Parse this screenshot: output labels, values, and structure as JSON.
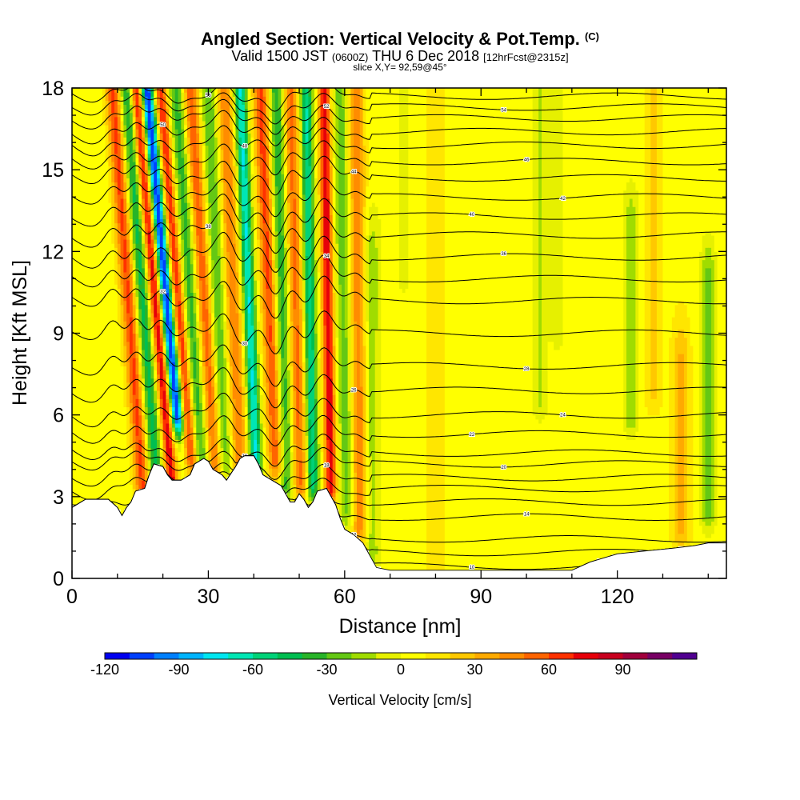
{
  "title": {
    "main": "Angled Section: Vertical Velocity & Pot.Temp.",
    "main_suffix": "(C)",
    "valid_prefix": "Valid 1500 JST",
    "valid_utc": "(0600Z)",
    "valid_date": "THU 6 Dec 2018",
    "forecast": "[12hrFcst@2315z]",
    "slice": "slice X,Y= 92,59@45°"
  },
  "chart_data": {
    "type": "heatmap",
    "xlabel": "Distance [nm]",
    "ylabel": "Height [Kft MSL]",
    "xlim": [
      0,
      144
    ],
    "ylim": [
      0,
      18
    ],
    "x_ticks": [
      0,
      30,
      60,
      90,
      120
    ],
    "y_ticks": [
      0,
      3,
      6,
      9,
      12,
      15,
      18
    ],
    "colorbar": {
      "label": "Vertical Velocity [cm/s]",
      "min": -120,
      "max": 110,
      "step": 10,
      "tick_values": [
        -120,
        -90,
        -60,
        -30,
        0,
        30,
        60,
        90
      ],
      "colors": [
        "#0000f0",
        "#0040ff",
        "#0080ff",
        "#00b4ff",
        "#00e6f0",
        "#00e6b4",
        "#00d278",
        "#00be50",
        "#28b428",
        "#64c814",
        "#a0dc00",
        "#e6f000",
        "#ffff00",
        "#ffe600",
        "#ffc800",
        "#ffaa00",
        "#ff8c00",
        "#ff6400",
        "#ff3200",
        "#e6000a",
        "#c8001e",
        "#a0003c",
        "#780064",
        "#500090"
      ]
    },
    "vertical_velocity_features": [
      {
        "x": 9,
        "value": 60,
        "bottom": 3.2,
        "top": 18,
        "slant": 0.09
      },
      {
        "x": 12,
        "value": -50,
        "bottom": 3.2,
        "top": 18,
        "slant": 0.09
      },
      {
        "x": 14,
        "value": 75,
        "bottom": 3.2,
        "top": 18,
        "slant": 0.11
      },
      {
        "x": 16.5,
        "value": -115,
        "bottom": 6,
        "top": 18,
        "slant": 0.11
      },
      {
        "x": 19.5,
        "value": 65,
        "bottom": 4.5,
        "top": 18,
        "slant": 0.1
      },
      {
        "x": 23,
        "value": -40,
        "bottom": 4.0,
        "top": 18,
        "slant": 0.08
      },
      {
        "x": 26,
        "value": 55,
        "bottom": 4.2,
        "top": 18,
        "slant": 0.08
      },
      {
        "x": 30,
        "value": -35,
        "bottom": 4.3,
        "top": 18,
        "slant": 0.05
      },
      {
        "x": 33.5,
        "value": 45,
        "bottom": 4.3,
        "top": 18,
        "slant": 0.05
      },
      {
        "x": 37,
        "value": -75,
        "bottom": 4.4,
        "top": 18,
        "slant": 0.05
      },
      {
        "x": 41.5,
        "value": 60,
        "bottom": 4.4,
        "top": 18,
        "slant": 0.05
      },
      {
        "x": 45,
        "value": -45,
        "bottom": 3.6,
        "top": 18,
        "slant": 0.03
      },
      {
        "x": 48,
        "value": 50,
        "bottom": 3.6,
        "top": 18,
        "slant": 0.03
      },
      {
        "x": 51.5,
        "value": -65,
        "bottom": 3.6,
        "top": 18,
        "slant": 0.02
      },
      {
        "x": 55.5,
        "value": 75,
        "bottom": 3.5,
        "top": 18,
        "slant": 0.02
      },
      {
        "x": 59,
        "value": -30,
        "bottom": 2.6,
        "top": 18,
        "slant": 0.02
      },
      {
        "x": 62.5,
        "value": 45,
        "bottom": 2.0,
        "top": 18,
        "slant": 0.01
      },
      {
        "x": 66,
        "value": -20,
        "bottom": 1.0,
        "top": 12,
        "slant": 0.0
      },
      {
        "x": 73,
        "value": -10,
        "bottom": 11,
        "top": 18,
        "slant": 0.0
      },
      {
        "x": 80,
        "value": 12,
        "bottom": 0.5,
        "top": 18,
        "slant": 0.0
      },
      {
        "x": 103,
        "value": -18,
        "bottom": 6.5,
        "top": 18,
        "slant": 0.0
      },
      {
        "x": 107,
        "value": -12,
        "bottom": 9,
        "top": 18,
        "slant": 0.0
      },
      {
        "x": 123,
        "value": -25,
        "bottom": 6,
        "top": 13,
        "slant": 0.0
      },
      {
        "x": 128,
        "value": 18,
        "bottom": 7,
        "top": 18,
        "slant": 0.0
      },
      {
        "x": 134,
        "value": 25,
        "bottom": 1.8,
        "top": 8,
        "slant": 0.0
      },
      {
        "x": 140,
        "value": -30,
        "bottom": 2.5,
        "top": 11,
        "slant": 0.0
      }
    ],
    "terrain": [
      [
        0,
        2.6
      ],
      [
        3,
        2.9
      ],
      [
        8,
        2.9
      ],
      [
        10,
        2.6
      ],
      [
        11,
        2.3
      ],
      [
        12,
        2.6
      ],
      [
        13,
        2.8
      ],
      [
        14,
        3.2
      ],
      [
        16,
        3.3
      ],
      [
        17,
        3.8
      ],
      [
        18,
        4.2
      ],
      [
        20,
        4.1
      ],
      [
        21,
        3.8
      ],
      [
        22,
        3.6
      ],
      [
        24,
        3.6
      ],
      [
        26,
        3.8
      ],
      [
        27,
        4.2
      ],
      [
        29,
        4.4
      ],
      [
        30,
        4.3
      ],
      [
        31,
        4.0
      ],
      [
        33,
        3.8
      ],
      [
        34,
        3.6
      ],
      [
        36,
        4.1
      ],
      [
        37,
        4.4
      ],
      [
        38,
        4.5
      ],
      [
        40,
        4.5
      ],
      [
        41,
        4.2
      ],
      [
        42,
        3.8
      ],
      [
        44,
        3.6
      ],
      [
        46,
        3.4
      ],
      [
        47,
        3.1
      ],
      [
        48,
        2.8
      ],
      [
        49,
        2.8
      ],
      [
        50,
        3.1
      ],
      [
        51,
        2.9
      ],
      [
        52,
        2.6
      ],
      [
        53,
        2.8
      ],
      [
        54,
        3.2
      ],
      [
        56,
        3.3
      ],
      [
        57,
        3.0
      ],
      [
        58,
        2.7
      ],
      [
        59,
        2.2
      ],
      [
        60,
        1.8
      ],
      [
        62,
        1.6
      ],
      [
        64,
        1.3
      ],
      [
        65,
        1.0
      ],
      [
        66,
        0.7
      ],
      [
        67,
        0.4
      ],
      [
        70,
        0.3
      ],
      [
        85,
        0.3
      ],
      [
        91,
        0.3
      ],
      [
        96,
        0.3
      ],
      [
        110,
        0.3
      ],
      [
        114,
        0.6
      ],
      [
        120,
        0.9
      ],
      [
        126,
        1.0
      ],
      [
        132,
        1.1
      ],
      [
        137,
        1.2
      ],
      [
        140,
        1.3
      ],
      [
        144,
        1.3
      ]
    ],
    "theta_contours": [
      {
        "label": "10",
        "base": 0.45,
        "wave": 0.1
      },
      {
        "label": "",
        "base": 0.95,
        "wave": 0.15
      },
      {
        "label": "12",
        "base": 1.45,
        "wave": 0.15
      },
      {
        "label": "14",
        "base": 2.25,
        "wave": 0.2
      },
      {
        "label": "16",
        "base": 2.8,
        "wave": 0.2
      },
      {
        "label": "",
        "base": 3.3,
        "wave": 0.25
      },
      {
        "label": "18",
        "base": 3.7,
        "wave": 0.3
      },
      {
        "label": "20",
        "base": 4.2,
        "wave": 0.3
      },
      {
        "label": "",
        "base": 4.6,
        "wave": 0.35
      },
      {
        "label": "22",
        "base": 5.3,
        "wave": 0.4
      },
      {
        "label": "24",
        "base": 6.0,
        "wave": 0.45
      },
      {
        "label": "26",
        "base": 6.9,
        "wave": 0.5
      },
      {
        "label": "28",
        "base": 7.8,
        "wave": 0.55
      },
      {
        "label": "30",
        "base": 9.0,
        "wave": 0.6
      },
      {
        "label": "32",
        "base": 10.2,
        "wave": 0.6
      },
      {
        "label": "34",
        "base": 11.0,
        "wave": 0.6
      },
      {
        "label": "36",
        "base": 11.8,
        "wave": 0.6
      },
      {
        "label": "38",
        "base": 12.6,
        "wave": 0.6
      },
      {
        "label": "40",
        "base": 13.3,
        "wave": 0.55
      },
      {
        "label": "42",
        "base": 14.0,
        "wave": 0.5
      },
      {
        "label": "44",
        "base": 14.7,
        "wave": 0.5
      },
      {
        "label": "46",
        "base": 15.3,
        "wave": 0.45
      },
      {
        "label": "48",
        "base": 15.9,
        "wave": 0.4
      },
      {
        "label": "50",
        "base": 16.4,
        "wave": 0.4
      },
      {
        "label": "52",
        "base": 16.9,
        "wave": 0.35
      },
      {
        "label": "54",
        "base": 17.3,
        "wave": 0.3
      },
      {
        "label": "56",
        "base": 17.7,
        "wave": 0.3
      }
    ]
  }
}
